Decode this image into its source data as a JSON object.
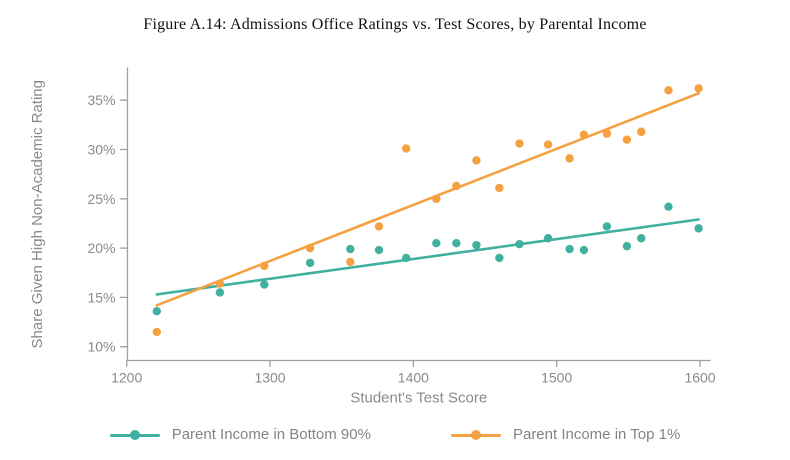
{
  "figure": {
    "title": "Figure A.14: Admissions Office Ratings vs. Test Scores, by Parental Income"
  },
  "chart_data": {
    "type": "scatter",
    "title": "Figure A.14: Admissions Office Ratings vs. Test Scores, by Parental Income",
    "xlabel": "Student's Test Score",
    "ylabel": "Share Given High Non-Academic Rating",
    "x_ticks": [
      1200,
      1300,
      1400,
      1500,
      1600
    ],
    "y_ticks": [
      10,
      15,
      20,
      25,
      30,
      35
    ],
    "y_tick_suffix": "%",
    "xlim": [
      1200,
      1607
    ],
    "ylim": [
      8.7,
      38.3
    ],
    "grid": false,
    "legend_position": "bottom",
    "axis_color": "#a0a0a0",
    "tick_label_color": "#8a8a8a",
    "x": [
      1221,
      1265,
      1296,
      1328,
      1356,
      1376,
      1395,
      1416,
      1430,
      1444,
      1460,
      1474,
      1494,
      1509,
      1519,
      1535,
      1549,
      1559,
      1578,
      1599
    ],
    "series": [
      {
        "name": "Parent Income in Bottom 90%",
        "color": "#41b0a0",
        "values": [
          13.6,
          15.5,
          16.3,
          18.5,
          19.9,
          19.8,
          19.0,
          20.5,
          20.5,
          20.3,
          19.0,
          20.4,
          21.0,
          19.9,
          19.8,
          22.2,
          20.2,
          21.0,
          24.2,
          22.0
        ],
        "fit_line": {
          "x": [
            1221,
            1599
          ],
          "y": [
            15.3,
            22.9
          ]
        }
      },
      {
        "name": "Parent Income in Top 1%",
        "color": "#f5a142",
        "values": [
          11.5,
          16.4,
          18.2,
          20.0,
          18.6,
          22.2,
          30.1,
          25.0,
          26.3,
          28.9,
          26.1,
          30.6,
          30.5,
          29.1,
          31.5,
          31.6,
          31.0,
          31.8,
          36.0,
          36.2
        ],
        "fit_line": {
          "x": [
            1221,
            1599
          ],
          "y": [
            14.2,
            35.7
          ]
        }
      }
    ]
  }
}
